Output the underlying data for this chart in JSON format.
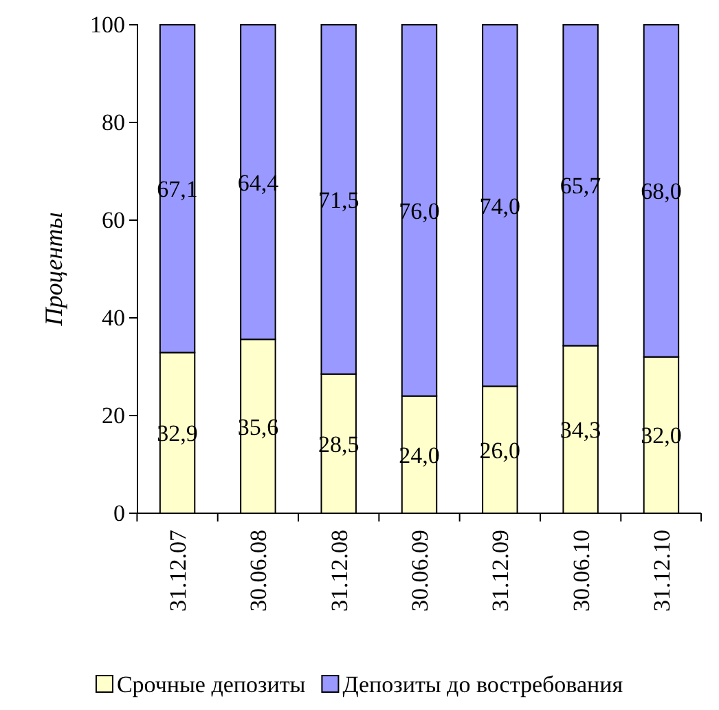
{
  "chart_data": {
    "type": "bar",
    "stacked": true,
    "ylabel": "Проценты",
    "categories": [
      "31.12.07",
      "30.06.08",
      "31.12.08",
      "30.06.09",
      "31.12.09",
      "30.06.10",
      "31.12.10"
    ],
    "series": [
      {
        "name": "Срочные депозиты",
        "color": "#ffffcc",
        "values": [
          32.9,
          35.6,
          28.5,
          24.0,
          26.0,
          34.3,
          32.0
        ],
        "value_labels": [
          "32,9",
          "35,6",
          "28,5",
          "24,0",
          "26,0",
          "34,3",
          "32,0"
        ]
      },
      {
        "name": "Депозиты до востребования",
        "color": "#9999ff",
        "values": [
          67.1,
          64.4,
          71.5,
          76.0,
          74.0,
          65.7,
          68.0
        ],
        "value_labels": [
          "67,1",
          "64,4",
          "71,5",
          "76,0",
          "74,0",
          "65,7",
          "68,0"
        ]
      }
    ],
    "ylim": [
      0,
      100
    ],
    "yticks": [
      0,
      20,
      40,
      60,
      80,
      100
    ],
    "grid": false,
    "legend": "bottom"
  }
}
